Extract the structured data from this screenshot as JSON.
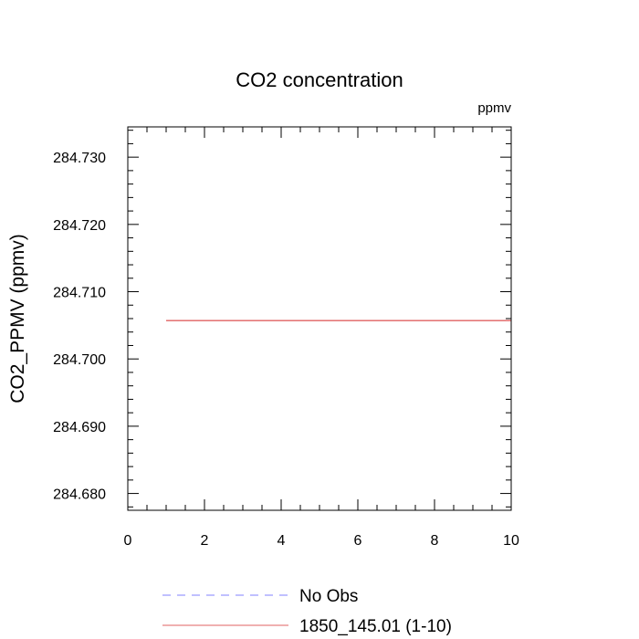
{
  "chart_data": {
    "type": "line",
    "title": "CO2 concentration",
    "units_label": "ppmv",
    "xlabel": "",
    "ylabel": "CO2_PPMV  (ppmv)",
    "xlim": [
      0,
      10
    ],
    "ylim": [
      284.6775,
      284.7345
    ],
    "x_ticks": [
      0,
      2,
      4,
      6,
      8,
      10
    ],
    "x_tick_labels": [
      "0",
      "2",
      "4",
      "6",
      "8",
      "10"
    ],
    "y_ticks": [
      284.68,
      284.69,
      284.7,
      284.71,
      284.72,
      284.73
    ],
    "y_tick_labels": [
      "284.680",
      "284.690",
      "284.700",
      "284.710",
      "284.720",
      "284.730"
    ],
    "grid": false,
    "legend_position": "bottom",
    "series": [
      {
        "name": "No Obs",
        "color": "#8080ff",
        "style": "dashed",
        "x": [],
        "y": []
      },
      {
        "name": "1850_145.01 (1-10)",
        "color": "#e06060",
        "style": "solid",
        "x": [
          1,
          10
        ],
        "y": [
          284.7057,
          284.7057
        ]
      }
    ]
  }
}
